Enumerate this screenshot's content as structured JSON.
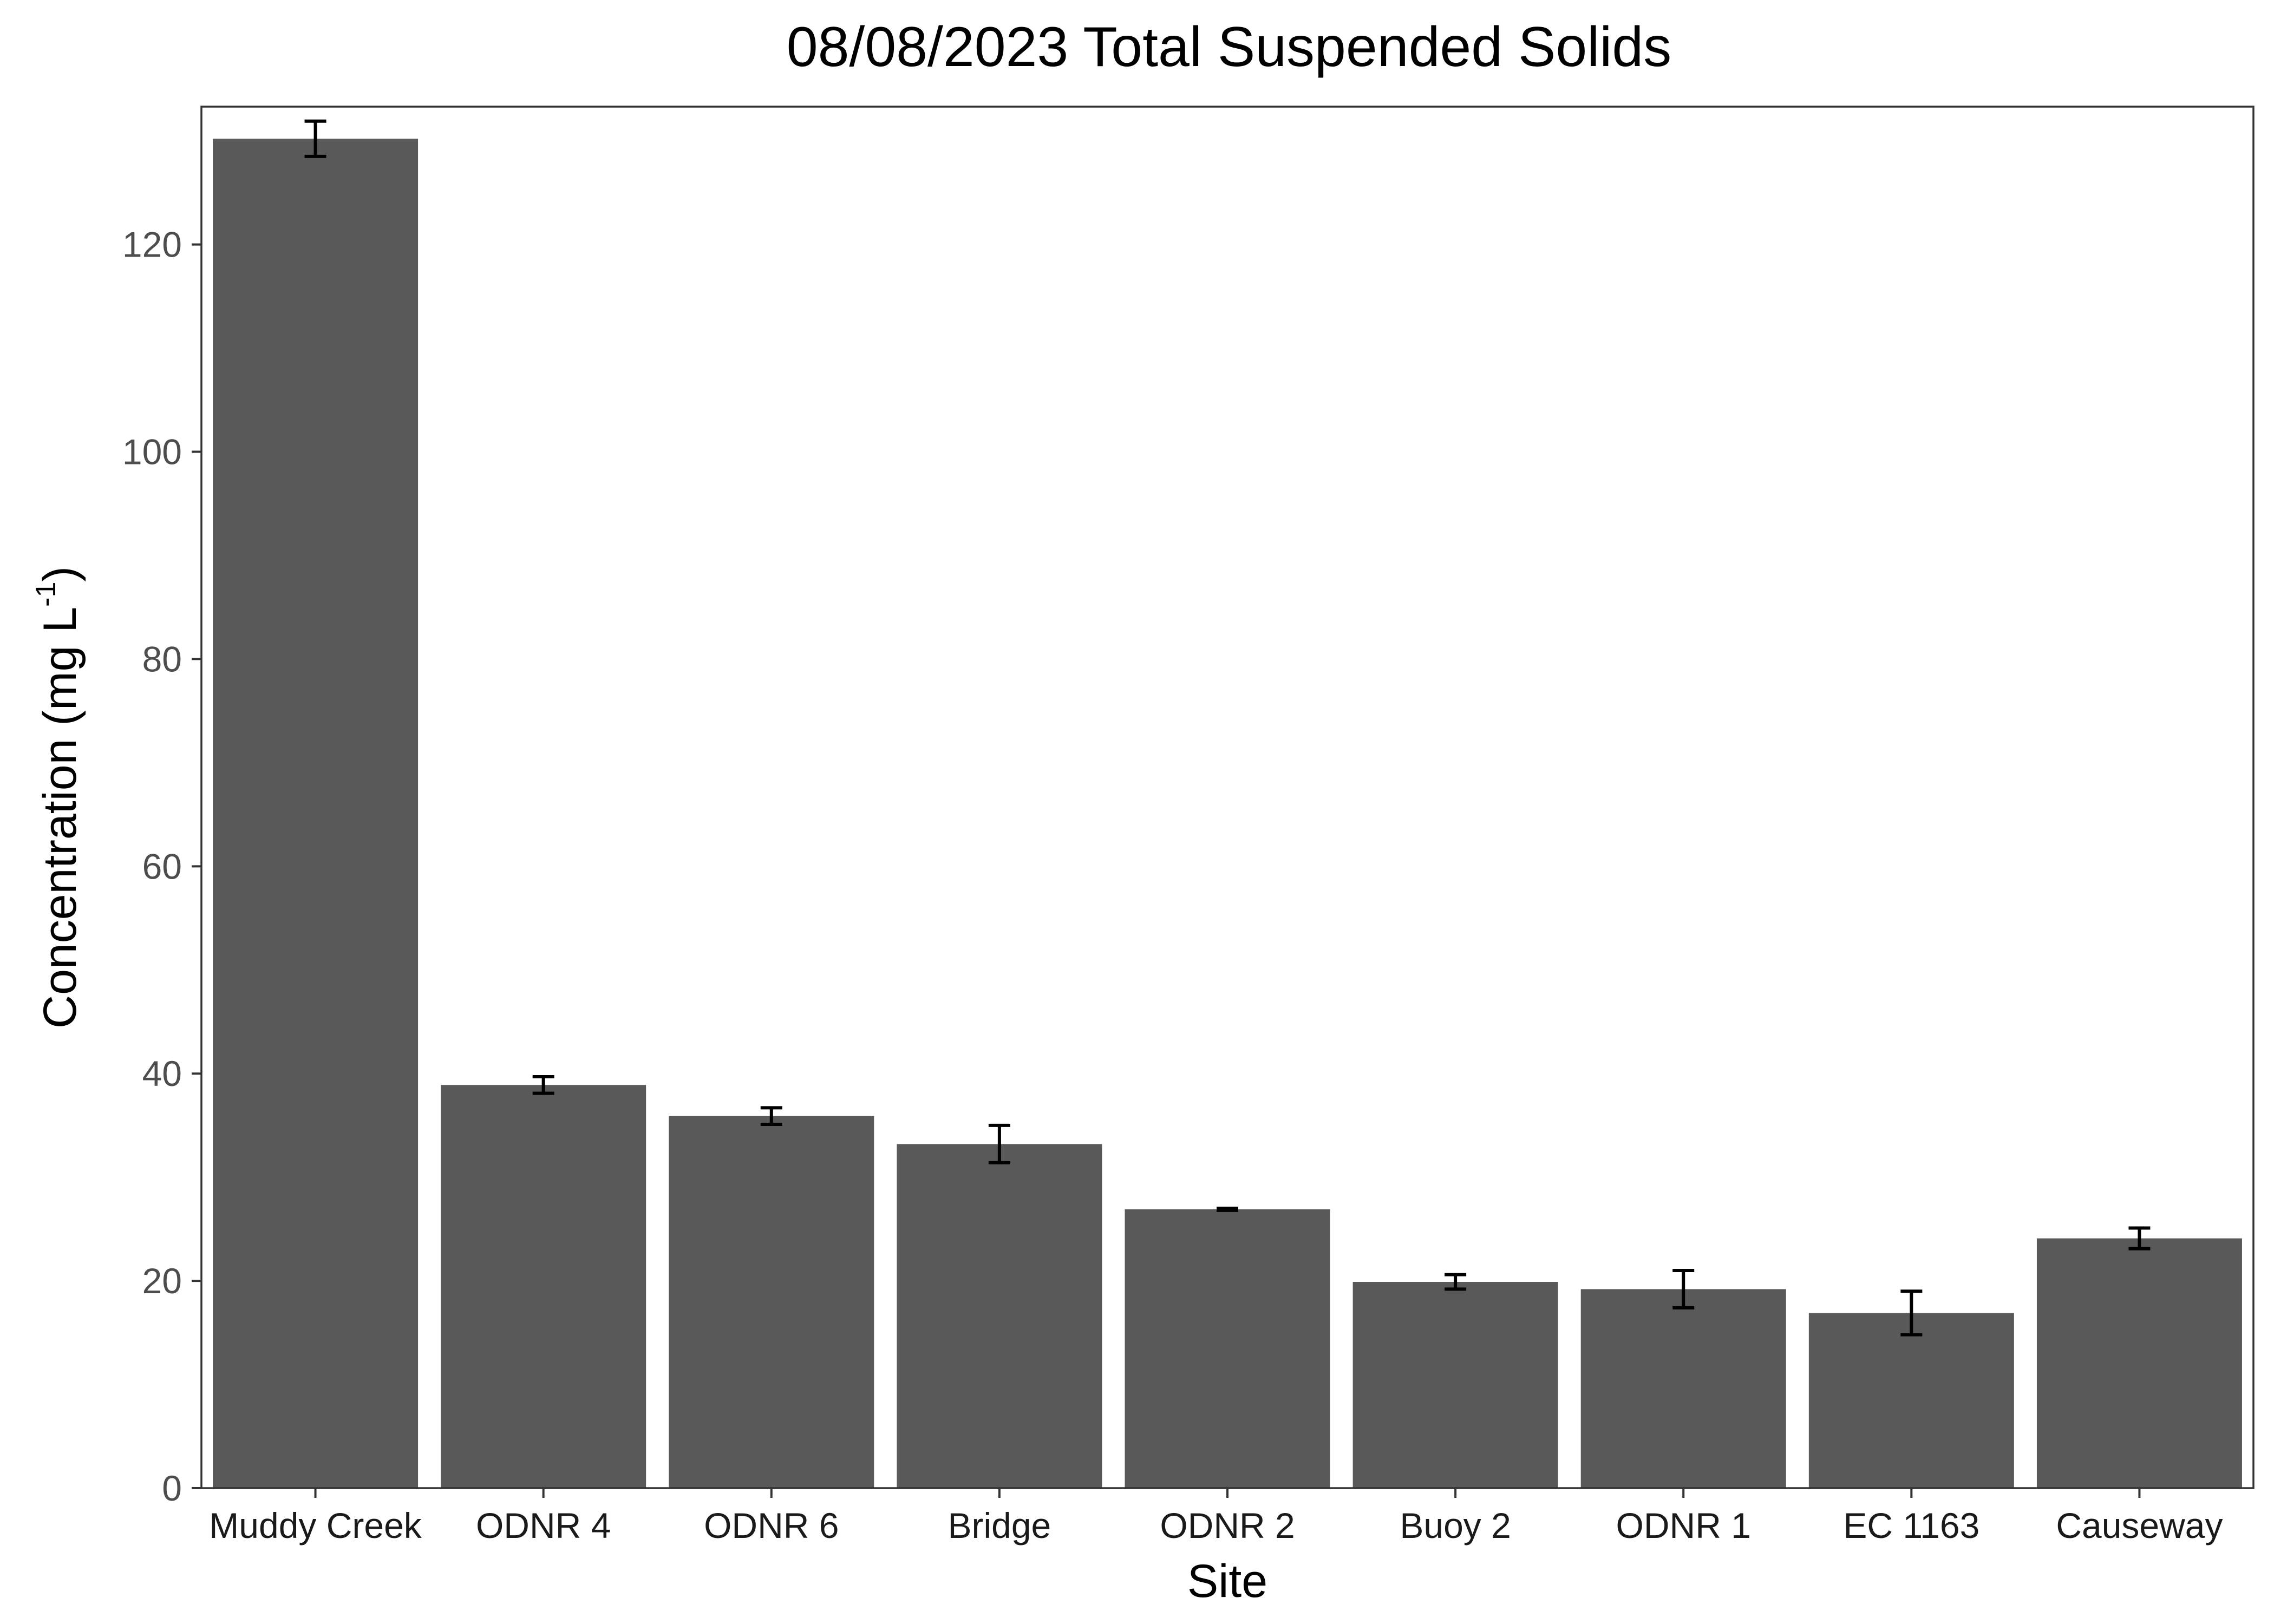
{
  "chart_data": {
    "type": "bar",
    "title": "08/08/2023 Total Suspended Solids",
    "xlabel": "Site",
    "ylabel": {
      "prefix": "Concentration (mg L",
      "superscript": "-1",
      "suffix": ")"
    },
    "categories": [
      "Muddy Creek",
      "ODNR 4",
      "ODNR 6",
      "Bridge",
      "ODNR 2",
      "Buoy 2",
      "ODNR 1",
      "EC 1163",
      "Causeway"
    ],
    "values": [
      130.2,
      38.9,
      35.9,
      33.2,
      26.9,
      19.9,
      19.2,
      16.9,
      24.1
    ],
    "error": [
      1.7,
      0.8,
      0.8,
      1.8,
      0.1,
      0.7,
      1.8,
      2.1,
      1.0
    ],
    "ylim": [
      0,
      133.3
    ],
    "yticks": [
      0,
      20,
      40,
      60,
      80,
      100,
      120
    ],
    "grid": false,
    "colors": {
      "bar": "#595959",
      "errorbar": "#000000",
      "panel_border": "#333333"
    }
  }
}
